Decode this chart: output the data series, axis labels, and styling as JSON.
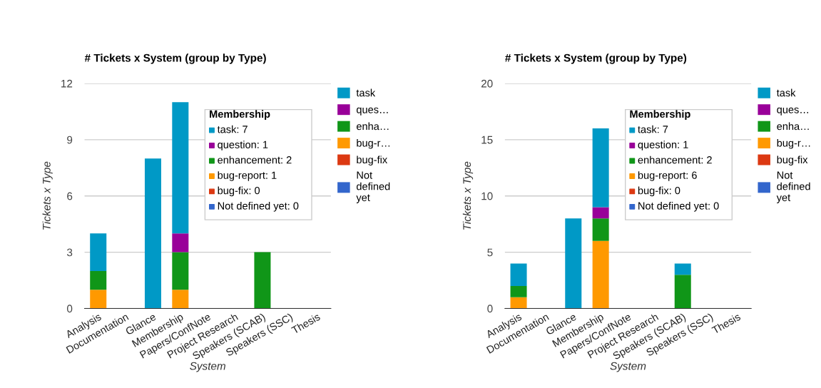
{
  "chart_data": [
    {
      "type": "bar",
      "stacked": true,
      "title": "# Tickets x System (group by Type)",
      "xlabel": "System",
      "ylabel": "Tickets x Type",
      "categories": [
        "Analysis",
        "Documentation",
        "Glance",
        "Membership",
        "Papers/ConfNote",
        "Project Research",
        "Speakers (SCAB)",
        "Speakers (SSC)",
        "Thesis"
      ],
      "series": [
        {
          "name": "bug-r…",
          "color": "#ff9900",
          "values": [
            1,
            0,
            0,
            1,
            0,
            0,
            0,
            0,
            0
          ]
        },
        {
          "name": "enha…",
          "color": "#109618",
          "values": [
            1,
            0,
            0,
            2,
            0,
            0,
            3,
            0,
            0
          ]
        },
        {
          "name": "ques…",
          "color": "#990099",
          "values": [
            0,
            0,
            0,
            1,
            0,
            0,
            0,
            0,
            0
          ]
        },
        {
          "name": "task",
          "color": "#0099c6",
          "values": [
            2,
            0,
            8,
            7,
            0,
            0,
            null,
            0,
            0
          ]
        },
        {
          "name": "bug-fix",
          "color": "#dc3912",
          "values": [
            0,
            0,
            0,
            0,
            0,
            0,
            0,
            0,
            0
          ]
        },
        {
          "name": "Not defined yet",
          "color": "#3366cc",
          "values": [
            0,
            0,
            0,
            0,
            0,
            0,
            0,
            0,
            0
          ]
        }
      ],
      "ylim": [
        0,
        12
      ],
      "yticks": [
        0,
        3,
        6,
        9,
        12
      ],
      "grid": "y",
      "legend": "right",
      "annotations": [
        "Membership",
        "task: 7",
        "question: 1",
        "enhancement: 2",
        "bug-report: 1",
        "bug-fix: 0",
        "Not defined yet: 0"
      ]
    },
    {
      "type": "bar",
      "stacked": true,
      "title": "# Tickets x System (group by Type)",
      "xlabel": "System",
      "ylabel": "Tickets x Type",
      "categories": [
        "Analysis",
        "Documentation",
        "Glance",
        "Membership",
        "Papers/ConfNote",
        "Project Research",
        "Speakers (SCAB)",
        "Speakers (SSC)",
        "Thesis"
      ],
      "series": [
        {
          "name": "bug-r…",
          "color": "#ff9900",
          "values": [
            1,
            0,
            0,
            6,
            0,
            0,
            0,
            0,
            0
          ]
        },
        {
          "name": "enha…",
          "color": "#109618",
          "values": [
            1,
            0,
            0,
            2,
            0,
            0,
            3,
            0,
            0
          ]
        },
        {
          "name": "ques…",
          "color": "#990099",
          "values": [
            0,
            0,
            0,
            1,
            0,
            0,
            0,
            0,
            0
          ]
        },
        {
          "name": "task",
          "color": "#0099c6",
          "values": [
            2,
            0,
            8,
            7,
            0,
            0,
            1,
            0,
            0
          ]
        },
        {
          "name": "bug-fix",
          "color": "#dc3912",
          "values": [
            0,
            0,
            0,
            0,
            0,
            0,
            0,
            0,
            0
          ]
        },
        {
          "name": "Not defined yet",
          "color": "#3366cc",
          "values": [
            0,
            0,
            0,
            0,
            0,
            0,
            0,
            0,
            0
          ]
        }
      ],
      "ylim": [
        0,
        20
      ],
      "yticks": [
        0,
        5,
        10,
        15,
        20
      ],
      "grid": "y",
      "legend": "right",
      "annotations": [
        "Membership",
        "task: 7",
        "question: 1",
        "enhancement: 2",
        "bug-report: 6",
        "bug-fix: 0",
        "Not defined yet: 0"
      ]
    }
  ]
}
